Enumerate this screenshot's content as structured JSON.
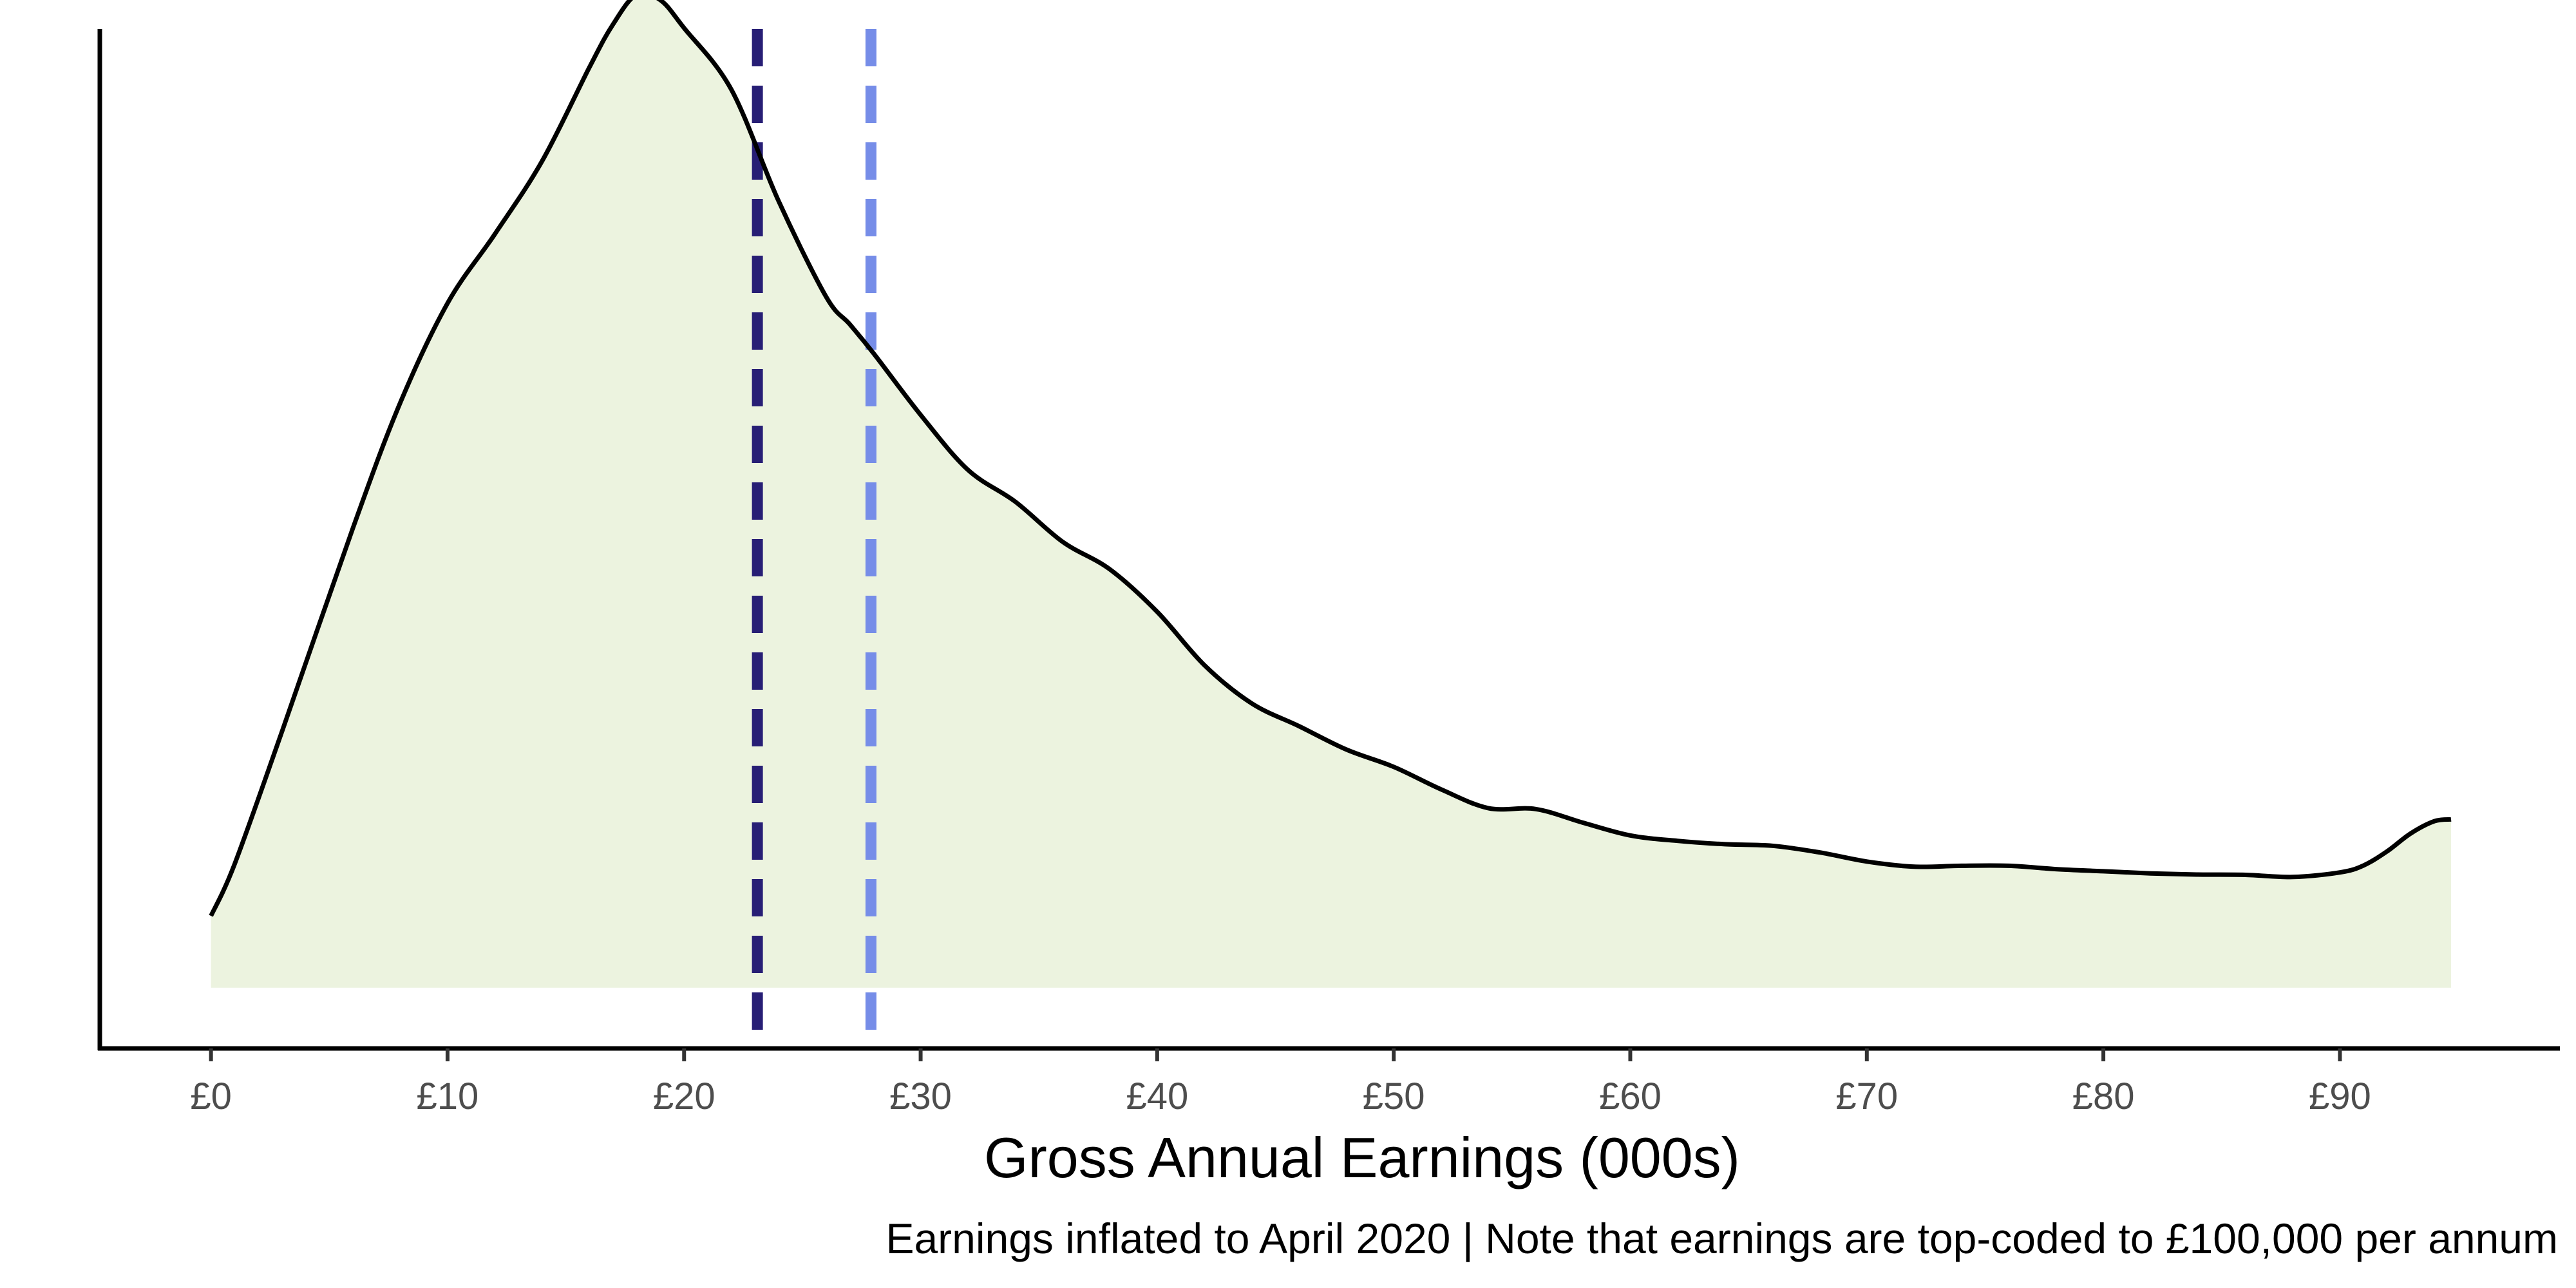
{
  "chart_data": {
    "type": "area",
    "xlabel": "Gross Annual Earnings (000s)",
    "ylabel": "",
    "caption": "Earnings inflated to April 2020 | Note that earnings are top-coded to £100,000 per annum",
    "xlim": [
      -4.7,
      99.3
    ],
    "ylim": [
      -0.002,
      0.0316
    ],
    "x_ticks": [
      0,
      10,
      20,
      30,
      40,
      50,
      60,
      70,
      80,
      90
    ],
    "x_tick_labels": [
      "£0",
      "£10",
      "£20",
      "£30",
      "£40",
      "£50",
      "£60",
      "£70",
      "£80",
      "£90"
    ],
    "y_axis_ticks_shown": false,
    "grid": false,
    "legend": "none",
    "fill_color": "#ecf3df",
    "line_color": "#000000",
    "density": {
      "x": [
        0,
        1,
        3,
        6,
        8,
        10,
        12,
        14,
        16,
        17,
        18,
        19,
        20,
        22,
        24,
        26,
        27,
        28,
        30,
        32,
        34,
        36,
        38,
        40,
        42,
        44,
        46,
        48,
        50,
        52,
        54,
        56,
        58,
        60,
        62,
        64,
        66,
        68,
        70,
        72,
        74,
        76,
        78,
        80,
        82,
        84,
        86,
        88,
        90,
        91,
        92,
        93,
        94,
        94.7
      ],
      "y": [
        0.00237,
        0.00408,
        0.00844,
        0.01515,
        0.01928,
        0.02256,
        0.02484,
        0.02725,
        0.03034,
        0.03176,
        0.03274,
        0.03255,
        0.03163,
        0.0296,
        0.02592,
        0.02278,
        0.02187,
        0.02092,
        0.01888,
        0.01707,
        0.01602,
        0.0147,
        0.01379,
        0.01239,
        0.01063,
        0.00937,
        0.00862,
        0.00785,
        0.00728,
        0.00654,
        0.00592,
        0.00589,
        0.00544,
        0.00502,
        0.00484,
        0.00473,
        0.00468,
        0.00446,
        0.00416,
        0.00399,
        0.00402,
        0.00402,
        0.00391,
        0.00384,
        0.00377,
        0.00373,
        0.00372,
        0.00365,
        0.0038,
        0.00403,
        0.0045,
        0.00509,
        0.00549,
        0.00555
      ]
    },
    "reference_lines": [
      {
        "x": 23.1,
        "color": "#271e75",
        "style": "dashed"
      },
      {
        "x": 27.9,
        "color": "#768de8",
        "style": "dashed"
      }
    ]
  }
}
